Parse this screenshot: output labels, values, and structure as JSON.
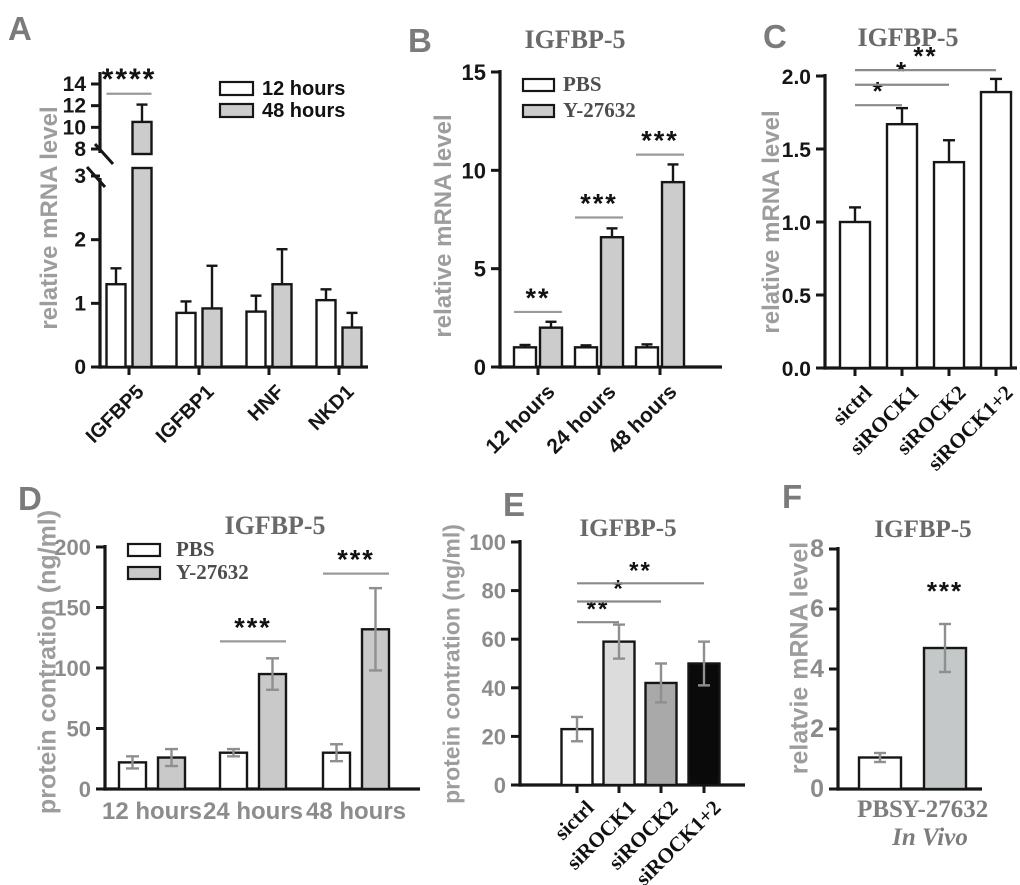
{
  "chart_data": [
    {
      "panel_label": "A",
      "type": "bar",
      "title": "",
      "ylabel": "relative mRNA level",
      "categories": [
        "IGFBP5",
        "IGFBP1",
        "HNF",
        "NKD1"
      ],
      "series": [
        {
          "name": "12 hours",
          "fill": "#ffffff",
          "values": [
            1.3,
            0.85,
            0.87,
            1.05
          ],
          "errors": [
            0.25,
            0.18,
            0.25,
            0.17
          ]
        },
        {
          "name": "48 hours",
          "fill": "#cccccc",
          "values": [
            10.5,
            0.92,
            1.3,
            0.62
          ],
          "errors": [
            1.6,
            0.67,
            0.55,
            0.23
          ]
        }
      ],
      "y_axis": {
        "broken": true,
        "lower_ticks": [
          "0",
          "1",
          "2",
          "3"
        ],
        "upper_ticks": [
          "8",
          "10",
          "12",
          "14"
        ],
        "lower_range": [
          0,
          3
        ],
        "upper_range": [
          8,
          14
        ]
      },
      "legend": [
        "12 hours",
        "48 hours"
      ],
      "significance": [
        {
          "kind": "pair",
          "category": 0,
          "label": "****",
          "y": 13.1
        }
      ]
    },
    {
      "panel_label": "B",
      "type": "bar",
      "title": "IGFBP-5",
      "ylabel": "relative mRNA level",
      "categories": [
        "12 hours",
        "24 hours",
        "48 hours"
      ],
      "series": [
        {
          "name": "PBS",
          "fill": "#ffffff",
          "values": [
            1.0,
            1.0,
            1.0
          ],
          "errors": [
            0.12,
            0.1,
            0.15
          ]
        },
        {
          "name": "Y-27632",
          "fill": "#cccccc",
          "values": [
            2.0,
            6.6,
            9.4
          ],
          "errors": [
            0.3,
            0.45,
            0.9
          ]
        }
      ],
      "y_axis": {
        "ticks": [
          "0",
          "5",
          "10",
          "15"
        ],
        "range": [
          0,
          15
        ]
      },
      "legend": [
        "PBS",
        "Y-27632"
      ],
      "significance": [
        {
          "kind": "pair",
          "category": 0,
          "label": "**",
          "y": 2.8
        },
        {
          "kind": "pair",
          "category": 1,
          "label": "***",
          "y": 7.6
        },
        {
          "kind": "pair",
          "category": 2,
          "label": "***",
          "y": 10.8
        }
      ]
    },
    {
      "panel_label": "C",
      "type": "bar",
      "title": "IGFBP-5",
      "ylabel": "relative mRNA level",
      "categories": [
        "sictrl",
        "siROCK1",
        "siROCK2",
        "siROCK1+2"
      ],
      "series": [
        {
          "name": "siRNA",
          "fill": "#ffffff",
          "fills": [
            "#ffffff",
            "#ffffff",
            "#ffffff",
            "#ffffff"
          ],
          "values": [
            1.0,
            1.67,
            1.41,
            1.89
          ],
          "errors": [
            0.1,
            0.11,
            0.15,
            0.09
          ]
        }
      ],
      "y_axis": {
        "ticks": [
          "0.0",
          "0.5",
          "1.0",
          "1.5",
          "2.0"
        ],
        "range": [
          0,
          2
        ]
      },
      "significance": [
        {
          "kind": "span",
          "from": 0,
          "to": 1,
          "label": "*",
          "y": 1.8
        },
        {
          "kind": "span",
          "from": 0,
          "to": 2,
          "label": "*",
          "y": 1.94
        },
        {
          "kind": "span",
          "from": 0,
          "to": 3,
          "label": "**",
          "y": 2.04
        }
      ]
    },
    {
      "panel_label": "D",
      "type": "bar",
      "title": "IGFBP-5",
      "ylabel": "protein contration (ng/ml)",
      "categories": [
        "12 hours",
        "24 hours",
        "48 hours"
      ],
      "series": [
        {
          "name": "PBS",
          "fill": "#ffffff",
          "values": [
            22,
            30,
            30
          ],
          "errors": [
            5,
            3,
            7
          ]
        },
        {
          "name": "Y-27632",
          "fill": "#c9c9c9",
          "values": [
            26,
            95,
            132
          ],
          "errors": [
            7,
            13,
            34
          ]
        }
      ],
      "y_axis": {
        "ticks": [
          "0",
          "50",
          "100",
          "150",
          "200"
        ],
        "range": [
          0,
          200
        ]
      },
      "legend": [
        "PBS",
        "Y-27632"
      ],
      "significance": [
        {
          "kind": "pair",
          "category": 1,
          "label": "***",
          "y": 122
        },
        {
          "kind": "pair",
          "category": 2,
          "label": "***",
          "y": 178
        }
      ]
    },
    {
      "panel_label": "E",
      "type": "bar",
      "title": "IGFBP-5",
      "ylabel": "protein contration (ng/ml)",
      "categories": [
        "sictrl",
        "siROCK1",
        "siROCK2",
        "siROCK1+2"
      ],
      "series": [
        {
          "name": "siRNA",
          "fill": "#ffffff",
          "fills": [
            "#ffffff",
            "#dcdcdc",
            "#a9a9a9",
            "#0a0a0a"
          ],
          "values": [
            23,
            59,
            42,
            50
          ],
          "errors": [
            5,
            7,
            8,
            9
          ]
        }
      ],
      "y_axis": {
        "ticks": [
          "0",
          "20",
          "40",
          "60",
          "80",
          "100"
        ],
        "range": [
          0,
          100
        ]
      },
      "significance": [
        {
          "kind": "span",
          "from": 0,
          "to": 1,
          "label": "**",
          "y": 67
        },
        {
          "kind": "span",
          "from": 0,
          "to": 2,
          "label": "*",
          "y": 75.5
        },
        {
          "kind": "span",
          "from": 0,
          "to": 3,
          "label": "**",
          "y": 83
        }
      ]
    },
    {
      "panel_label": "F",
      "type": "bar",
      "title": "IGFBP-5",
      "ylabel": "relatvie mRNA level",
      "categories": [
        "PBS",
        "Y-27632"
      ],
      "series": [
        {
          "name": "treatment",
          "fill": "#ffffff",
          "fills": [
            "#ffffff",
            "#c4c8c8"
          ],
          "values": [
            1.05,
            4.7
          ],
          "errors": [
            0.15,
            0.8
          ]
        }
      ],
      "y_axis": {
        "ticks": [
          "0",
          "2",
          "4",
          "6",
          "8"
        ],
        "range": [
          0,
          8
        ]
      },
      "significance": [
        {
          "kind": "star",
          "category": 1,
          "label": "***",
          "y": 6.3
        }
      ],
      "footnote": "In Vivo"
    }
  ],
  "colors": {
    "bar_gray": "#cccccc",
    "bar_light_gray": "#dcdcdc",
    "bar_mid_gray": "#a9a9a9",
    "bar_black": "#0a0a0a",
    "axis": "#161616",
    "muted_text": "#9d9d9d",
    "title_text": "#696969",
    "panel_label_text": "#7b7b7b",
    "error_bar_gray": "#8f8f8f",
    "sig_line": "#9a9a9a"
  }
}
